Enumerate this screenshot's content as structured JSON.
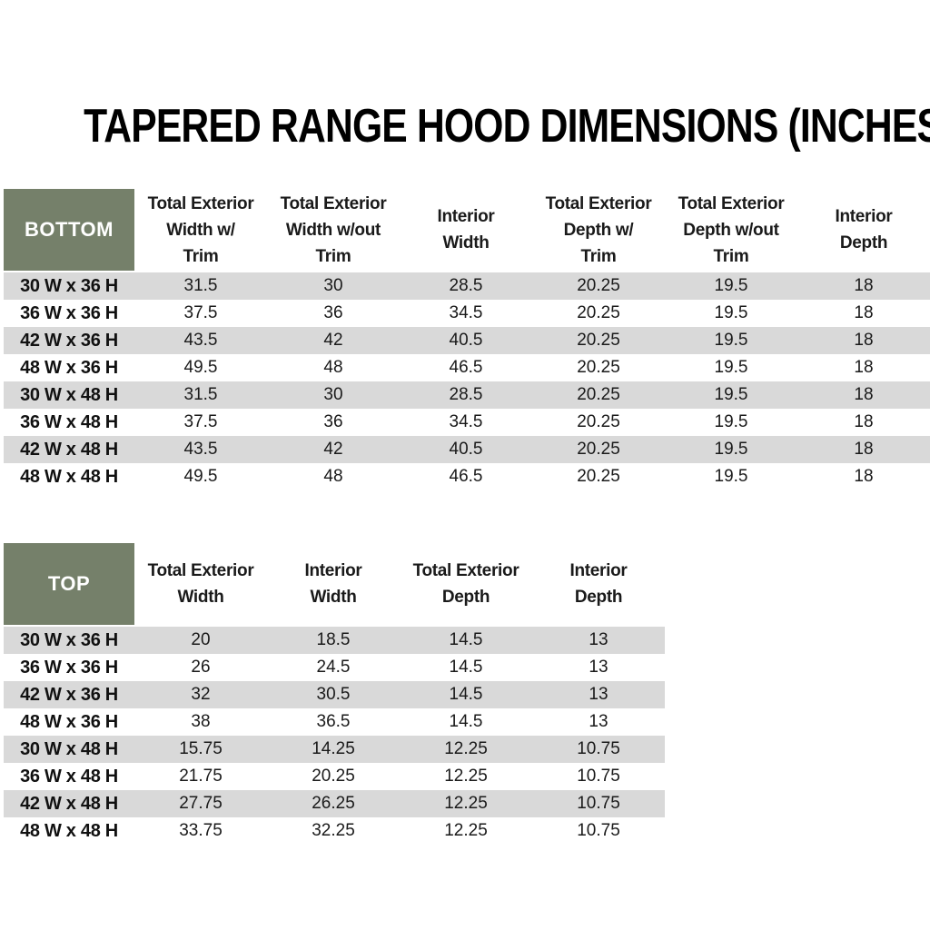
{
  "title": "TAPERED RANGE HOOD DIMENSIONS (INCHES)",
  "colors": {
    "header_green": "#75806A",
    "stripe_gray": "#D9D9D9",
    "page_bg": "#FFFFFF"
  },
  "bottom_table": {
    "label": "BOTTOM",
    "columns": [
      "Total Exterior\nWidth w/\nTrim",
      "Total Exterior\nWidth w/out\nTrim",
      "Interior\nWidth",
      "Total Exterior\nDepth w/\nTrim",
      "Total Exterior\nDepth w/out\nTrim",
      "Interior\nDepth"
    ],
    "rows": [
      {
        "label": "30 W x 36 H",
        "values": [
          "31.5",
          "30",
          "28.5",
          "20.25",
          "19.5",
          "18"
        ]
      },
      {
        "label": "36 W x 36 H",
        "values": [
          "37.5",
          "36",
          "34.5",
          "20.25",
          "19.5",
          "18"
        ]
      },
      {
        "label": "42 W x 36 H",
        "values": [
          "43.5",
          "42",
          "40.5",
          "20.25",
          "19.5",
          "18"
        ]
      },
      {
        "label": "48 W x 36 H",
        "values": [
          "49.5",
          "48",
          "46.5",
          "20.25",
          "19.5",
          "18"
        ]
      },
      {
        "label": "30 W x 48 H",
        "values": [
          "31.5",
          "30",
          "28.5",
          "20.25",
          "19.5",
          "18"
        ]
      },
      {
        "label": "36 W x 48 H",
        "values": [
          "37.5",
          "36",
          "34.5",
          "20.25",
          "19.5",
          "18"
        ]
      },
      {
        "label": "42 W x 48 H",
        "values": [
          "43.5",
          "42",
          "40.5",
          "20.25",
          "19.5",
          "18"
        ]
      },
      {
        "label": "48 W x 48 H",
        "values": [
          "49.5",
          "48",
          "46.5",
          "20.25",
          "19.5",
          "18"
        ]
      }
    ]
  },
  "top_table": {
    "label": "TOP",
    "columns": [
      "Total Exterior\nWidth",
      "Interior\nWidth",
      "Total Exterior\nDepth",
      "Interior\nDepth"
    ],
    "rows": [
      {
        "label": "30 W x 36 H",
        "values": [
          "20",
          "18.5",
          "14.5",
          "13"
        ]
      },
      {
        "label": "36 W x 36 H",
        "values": [
          "26",
          "24.5",
          "14.5",
          "13"
        ]
      },
      {
        "label": "42 W x 36 H",
        "values": [
          "32",
          "30.5",
          "14.5",
          "13"
        ]
      },
      {
        "label": "48 W x 36 H",
        "values": [
          "38",
          "36.5",
          "14.5",
          "13"
        ]
      },
      {
        "label": "30 W x 48 H",
        "values": [
          "15.75",
          "14.25",
          "12.25",
          "10.75"
        ]
      },
      {
        "label": "36 W x 48 H",
        "values": [
          "21.75",
          "20.25",
          "12.25",
          "10.75"
        ]
      },
      {
        "label": "42 W x 48 H",
        "values": [
          "27.75",
          "26.25",
          "12.25",
          "10.75"
        ]
      },
      {
        "label": "48 W x 48 H",
        "values": [
          "33.75",
          "32.25",
          "12.25",
          "10.75"
        ]
      }
    ]
  }
}
